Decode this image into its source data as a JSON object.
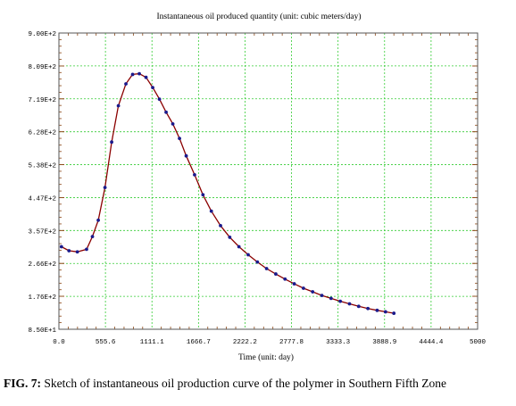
{
  "caption": {
    "label": "FIG. 7:",
    "text": "Sketch of instantaneous oil production curve of the polymer in Southern Fifth Zone"
  },
  "chart_data": {
    "type": "line",
    "title": "Instantaneous oil produced quantity (unit: cubic meters/day)",
    "xlabel": "Time (unit: day)",
    "ylabel": "",
    "xlim": [
      0,
      5000
    ],
    "ylim": [
      85,
      900
    ],
    "x_ticks": [
      0.0,
      555.6,
      1111.1,
      1666.7,
      2222.2,
      2777.8,
      3333.3,
      3888.9,
      4444.4,
      5000
    ],
    "x_tick_labels": [
      "0.0",
      "555.6",
      "1111.1",
      "1666.7",
      "2222.2",
      "2777.8",
      "3333.3",
      "3888.9",
      "4444.4",
      "5000"
    ],
    "y_ticks": [
      85,
      175.6,
      266.1,
      356.7,
      447.2,
      537.8,
      628.3,
      718.9,
      809.4,
      900
    ],
    "y_tick_labels": [
      "8.50E+1",
      "1.76E+2",
      "2.66E+2",
      "3.57E+2",
      "4.47E+2",
      "5.38E+2",
      "6.28E+2",
      "7.19E+2",
      "8.09E+2",
      "9.00E+2"
    ],
    "grid": true,
    "colors": {
      "line": "#8b0000",
      "markers": "#1a1a8c",
      "grid": "#33cc33",
      "axes": "#555555"
    },
    "series": [
      {
        "x": [
          30,
          120,
          220,
          330,
          400,
          470,
          550,
          630,
          710,
          800,
          880,
          960,
          1040,
          1120,
          1200,
          1280,
          1360,
          1440,
          1520,
          1620,
          1720,
          1820,
          1930,
          2040,
          2150,
          2260,
          2370,
          2480,
          2590,
          2700,
          2810,
          2920,
          3030,
          3140,
          3250,
          3360,
          3470,
          3580,
          3690,
          3800,
          3900,
          4000
        ],
        "y": [
          312,
          301,
          298,
          305,
          340,
          385,
          475,
          600,
          700,
          760,
          786,
          788,
          778,
          750,
          718,
          682,
          650,
          610,
          562,
          510,
          455,
          410,
          370,
          338,
          312,
          290,
          270,
          252,
          237,
          223,
          210,
          198,
          188,
          178,
          170,
          162,
          155,
          148,
          142,
          137,
          133,
          129
        ]
      }
    ]
  }
}
